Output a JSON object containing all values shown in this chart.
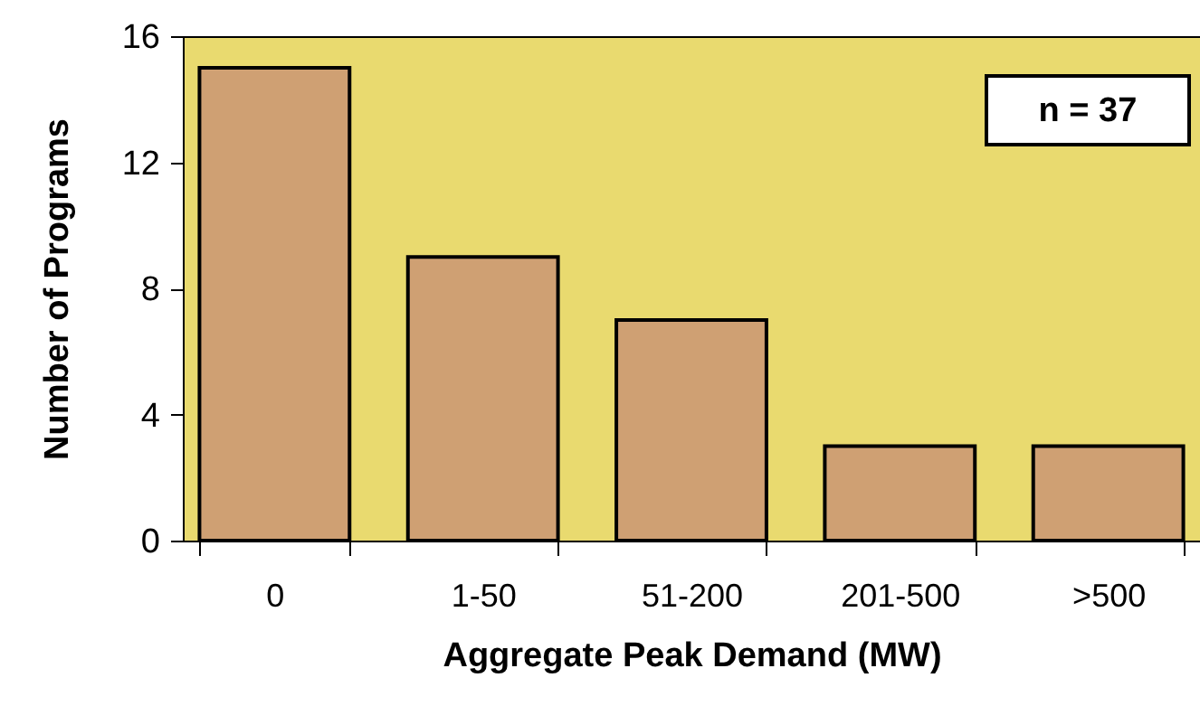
{
  "chart_data": {
    "type": "bar",
    "xlabel": "Aggregate Peak Demand (MW)",
    "ylabel": "Number of Programs",
    "categories": [
      "0",
      "1-50",
      "51-200",
      "201-500",
      ">500"
    ],
    "values": [
      15,
      9,
      7,
      3,
      3
    ],
    "color": "#cfa073",
    "ylim": [
      0,
      16
    ],
    "yticks": [
      0,
      4,
      8,
      12,
      16
    ],
    "grid": false,
    "annotations": [
      "n = 37"
    ]
  }
}
